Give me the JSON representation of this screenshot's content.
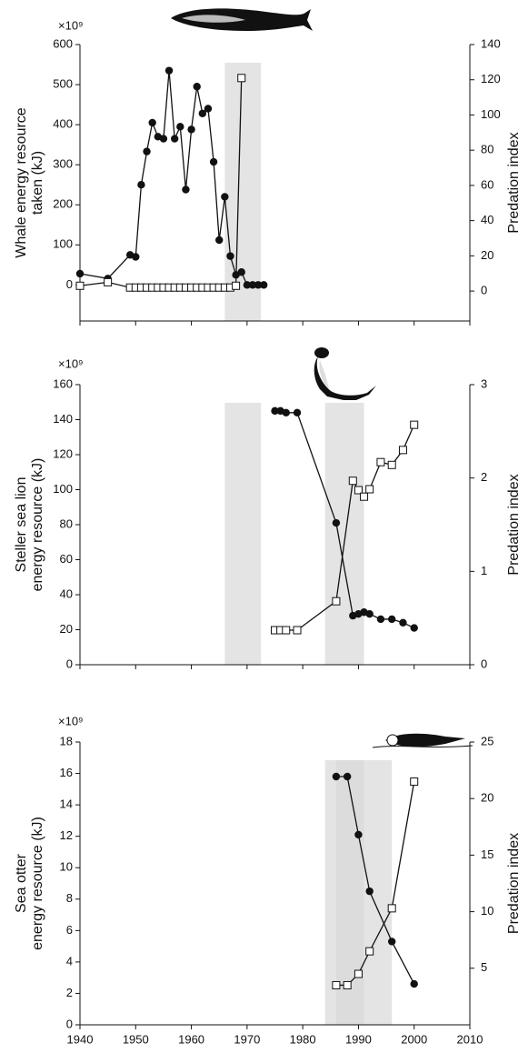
{
  "chart_data": [
    {
      "type": "line",
      "multiplier": "×10⁹",
      "ylabel": [
        "Whale energy resource",
        "taken (kJ)"
      ],
      "y2label": "Predation index",
      "x": [
        1940,
        1945,
        1949,
        1950,
        1951,
        1952,
        1953,
        1954,
        1955,
        1956,
        1957,
        1958,
        1959,
        1960,
        1961,
        1962,
        1963,
        1964,
        1965,
        1966,
        1967,
        1968,
        1969,
        1970,
        1971,
        1972,
        1973
      ],
      "xlim": [
        1940,
        2010
      ],
      "ylim": [
        -90,
        600
      ],
      "yticks": [
        0,
        100,
        200,
        300,
        400,
        500,
        600
      ],
      "y2lim": [
        -17,
        140
      ],
      "y2ticks": [
        0,
        20,
        40,
        60,
        80,
        100,
        120,
        140
      ],
      "shaded_periods": [
        [
          1966,
          1972.5
        ]
      ],
      "series": [
        {
          "marker": "circle",
          "color": "#111111",
          "values": [
            28,
            16,
            75,
            70,
            250,
            333,
            405,
            370,
            365,
            535,
            365,
            395,
            238,
            388,
            495,
            428,
            440,
            307,
            112,
            220,
            72,
            25,
            32,
            0,
            0,
            0,
            0
          ]
        },
        {
          "marker": "square",
          "color": "#111111",
          "axis": "y2",
          "values": [
            3,
            5,
            2,
            2,
            2,
            2,
            2,
            2,
            2,
            2,
            2,
            2,
            2,
            2,
            2,
            2,
            2,
            2,
            2,
            2,
            2,
            3,
            121,
            null,
            null,
            null,
            null
          ]
        }
      ]
    },
    {
      "type": "line",
      "multiplier": "×10⁹",
      "ylabel": [
        "Steller sea lion",
        "energy resource (kJ)"
      ],
      "y2label": "Predation index",
      "x": [
        1975,
        1976,
        1977,
        1979,
        1986,
        1989,
        1990,
        1991,
        1992,
        1994,
        1996,
        1998,
        2000
      ],
      "xlim": [
        1940,
        2010
      ],
      "ylim": [
        0,
        160
      ],
      "yticks": [
        0,
        20,
        40,
        60,
        80,
        100,
        120,
        140,
        160
      ],
      "y2lim": [
        0,
        3
      ],
      "y2ticks": [
        0,
        1,
        2,
        3
      ],
      "shaded_periods": [
        [
          1966,
          1972.5
        ],
        [
          1984,
          1991
        ]
      ],
      "series": [
        {
          "marker": "circle",
          "color": "#111111",
          "values": [
            145,
            145,
            144,
            144,
            81,
            28,
            29,
            30,
            29,
            26,
            26,
            24,
            21
          ]
        },
        {
          "marker": "square",
          "color": "#111111",
          "axis": "y2",
          "values": [
            0.37,
            0.37,
            0.37,
            0.37,
            0.68,
            1.97,
            1.87,
            1.8,
            1.88,
            2.17,
            2.14,
            2.3,
            2.57
          ]
        }
      ]
    },
    {
      "type": "line",
      "multiplier": "×10⁹",
      "ylabel": [
        "Sea otter",
        "energy resource (kJ)"
      ],
      "y2label": "Predation index",
      "x": [
        1986,
        1988,
        1990,
        1992,
        1996,
        2000
      ],
      "xlim": [
        1940,
        2010
      ],
      "xticks": [
        1940,
        1950,
        1960,
        1970,
        1980,
        1990,
        2000,
        2010
      ],
      "ylim": [
        0,
        18
      ],
      "yticks": [
        0,
        2,
        4,
        6,
        8,
        10,
        12,
        14,
        16,
        18
      ],
      "y2lim": [
        0,
        25
      ],
      "y2ticks": [
        5,
        10,
        15,
        20,
        25
      ],
      "shaded_periods": [
        [
          1984,
          1991
        ],
        [
          1986,
          1996
        ]
      ],
      "series": [
        {
          "marker": "circle",
          "color": "#111111",
          "values": [
            15.8,
            15.8,
            12.1,
            8.5,
            5.3,
            2.6
          ]
        },
        {
          "marker": "square",
          "color": "#111111",
          "axis": "y2",
          "values": [
            3.5,
            3.5,
            4.5,
            6.5,
            10.3,
            21.5
          ]
        }
      ]
    }
  ]
}
